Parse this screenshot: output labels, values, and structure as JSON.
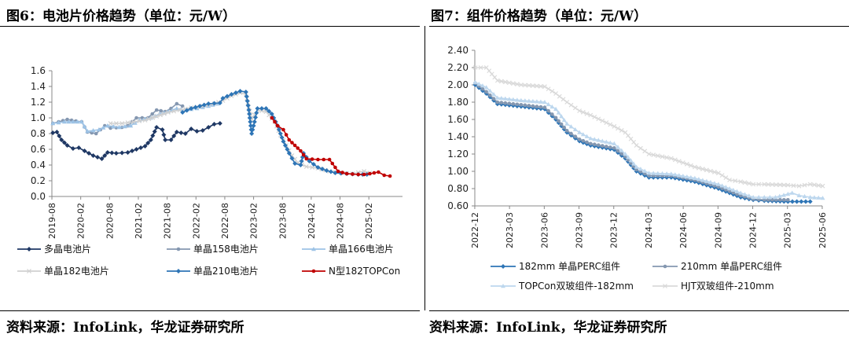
{
  "left": {
    "title": "图6：电池片价格趋势（单位：元/W）",
    "source": "资料来源：InfoLink，华龙证券研究所"
  },
  "right": {
    "title": "图7：组件价格趋势（单位：元/W）",
    "source": "资料来源：InfoLink，华龙证券研究所"
  },
  "chart_data": [
    {
      "type": "line",
      "title": "电池片价格趋势",
      "ylabel": "元/W",
      "ylim": [
        0,
        1.6
      ],
      "yticks": [
        "0.0",
        "0.2",
        "0.4",
        "0.6",
        "0.8",
        "1.0",
        "1.2",
        "1.4",
        "1.6"
      ],
      "xlim": [
        2019.583,
        2025.667
      ],
      "xticks": [
        "2019-08",
        "2020-02",
        "2020-08",
        "2021-02",
        "2021-08",
        "2022-02",
        "2022-08",
        "2023-02",
        "2023-08",
        "2024-02",
        "2024-08",
        "2025-02"
      ],
      "series": [
        {
          "name": "多晶电池片",
          "color": "#1f3864",
          "marker": "diamond",
          "points": [
            [
              2019.6,
              0.81
            ],
            [
              2019.67,
              0.82
            ],
            [
              2019.75,
              0.72
            ],
            [
              2019.85,
              0.65
            ],
            [
              2019.95,
              0.61
            ],
            [
              2020.05,
              0.62
            ],
            [
              2020.15,
              0.58
            ],
            [
              2020.3,
              0.52
            ],
            [
              2020.45,
              0.48
            ],
            [
              2020.55,
              0.56
            ],
            [
              2020.7,
              0.55
            ],
            [
              2020.9,
              0.56
            ],
            [
              2021.05,
              0.6
            ],
            [
              2021.2,
              0.64
            ],
            [
              2021.3,
              0.72
            ],
            [
              2021.4,
              0.88
            ],
            [
              2021.5,
              0.85
            ],
            [
              2021.55,
              0.72
            ],
            [
              2021.65,
              0.72
            ],
            [
              2021.75,
              0.82
            ],
            [
              2021.9,
              0.8
            ],
            [
              2022.0,
              0.86
            ],
            [
              2022.1,
              0.83
            ],
            [
              2022.2,
              0.84
            ],
            [
              2022.3,
              0.88
            ],
            [
              2022.4,
              0.92
            ],
            [
              2022.5,
              0.93
            ]
          ]
        },
        {
          "name": "单晶158电池片",
          "color": "#8497b0",
          "marker": "circle",
          "points": [
            [
              2019.6,
              0.93
            ],
            [
              2019.7,
              0.95
            ],
            [
              2019.85,
              0.98
            ],
            [
              2020.0,
              0.96
            ],
            [
              2020.1,
              0.95
            ],
            [
              2020.2,
              0.82
            ],
            [
              2020.35,
              0.8
            ],
            [
              2020.5,
              0.9
            ],
            [
              2020.6,
              0.87
            ],
            [
              2020.8,
              0.88
            ],
            [
              2020.9,
              0.9
            ],
            [
              2021.05,
              1.0
            ],
            [
              2021.25,
              1.0
            ],
            [
              2021.4,
              1.1
            ],
            [
              2021.55,
              1.08
            ],
            [
              2021.65,
              1.12
            ],
            [
              2021.75,
              1.18
            ],
            [
              2021.85,
              1.15
            ]
          ]
        },
        {
          "name": "单晶166电池片",
          "color": "#9dc3e6",
          "marker": "triangle",
          "points": [
            [
              2019.6,
              0.93
            ],
            [
              2019.8,
              0.95
            ],
            [
              2020.1,
              0.95
            ],
            [
              2020.2,
              0.83
            ],
            [
              2020.4,
              0.85
            ],
            [
              2020.55,
              0.9
            ],
            [
              2020.75,
              0.88
            ],
            [
              2020.95,
              0.9
            ],
            [
              2021.1,
              0.97
            ],
            [
              2021.3,
              1.0
            ],
            [
              2021.45,
              1.05
            ],
            [
              2021.6,
              1.08
            ],
            [
              2021.75,
              1.12
            ],
            [
              2021.9,
              1.1
            ],
            [
              2022.1,
              1.12
            ],
            [
              2022.3,
              1.15
            ],
            [
              2022.45,
              1.18
            ]
          ]
        },
        {
          "name": "单晶182电池片",
          "color": "#d0d0d0",
          "marker": "x",
          "points": [
            [
              2020.6,
              0.93
            ],
            [
              2020.8,
              0.93
            ],
            [
              2021.0,
              0.95
            ],
            [
              2021.2,
              0.97
            ],
            [
              2021.4,
              1.02
            ],
            [
              2021.6,
              1.07
            ],
            [
              2021.8,
              1.1
            ],
            [
              2022.0,
              1.13
            ],
            [
              2022.2,
              1.15
            ],
            [
              2022.4,
              1.18
            ],
            [
              2022.55,
              1.22
            ],
            [
              2022.7,
              1.28
            ],
            [
              2022.85,
              1.32
            ],
            [
              2022.95,
              1.3
            ],
            [
              2023.05,
              0.98
            ],
            [
              2023.15,
              1.1
            ],
            [
              2023.3,
              1.08
            ],
            [
              2023.45,
              0.95
            ],
            [
              2023.55,
              0.78
            ],
            [
              2023.65,
              0.65
            ],
            [
              2023.75,
              0.52
            ],
            [
              2023.85,
              0.43
            ],
            [
              2024.0,
              0.38
            ],
            [
              2024.2,
              0.36
            ],
            [
              2024.4,
              0.32
            ],
            [
              2024.6,
              0.3
            ],
            [
              2024.8,
              0.29
            ],
            [
              2025.0,
              0.32
            ],
            [
              2025.1,
              0.3
            ]
          ]
        },
        {
          "name": "单晶210电池片",
          "color": "#2e75b6",
          "marker": "diamond",
          "points": [
            [
              2021.85,
              1.07
            ],
            [
              2022.0,
              1.12
            ],
            [
              2022.15,
              1.15
            ],
            [
              2022.3,
              1.18
            ],
            [
              2022.5,
              1.19
            ],
            [
              2022.55,
              1.25
            ],
            [
              2022.7,
              1.3
            ],
            [
              2022.85,
              1.34
            ],
            [
              2022.95,
              1.33
            ],
            [
              2023.0,
              1.1
            ],
            [
              2023.05,
              0.8
            ],
            [
              2023.1,
              0.95
            ],
            [
              2023.15,
              1.12
            ],
            [
              2023.3,
              1.12
            ],
            [
              2023.4,
              1.05
            ],
            [
              2023.5,
              0.9
            ],
            [
              2023.6,
              0.7
            ],
            [
              2023.7,
              0.55
            ],
            [
              2023.8,
              0.42
            ],
            [
              2023.9,
              0.4
            ],
            [
              2023.95,
              0.55
            ],
            [
              2024.05,
              0.45
            ],
            [
              2024.2,
              0.37
            ],
            [
              2024.35,
              0.33
            ],
            [
              2024.5,
              0.3
            ],
            [
              2024.7,
              0.29
            ],
            [
              2024.9,
              0.28
            ],
            [
              2025.05,
              0.28
            ]
          ]
        },
        {
          "name": "N型182TOPCon",
          "color": "#c00000",
          "marker": "circle",
          "points": [
            [
              2023.4,
              1.0
            ],
            [
              2023.5,
              0.9
            ],
            [
              2023.6,
              0.85
            ],
            [
              2023.7,
              0.72
            ],
            [
              2023.8,
              0.65
            ],
            [
              2023.9,
              0.58
            ],
            [
              2024.0,
              0.48
            ],
            [
              2024.2,
              0.47
            ],
            [
              2024.4,
              0.47
            ],
            [
              2024.5,
              0.37
            ],
            [
              2024.55,
              0.32
            ],
            [
              2024.7,
              0.29
            ],
            [
              2024.9,
              0.28
            ],
            [
              2025.0,
              0.28
            ],
            [
              2025.1,
              0.29
            ],
            [
              2025.25,
              0.31
            ],
            [
              2025.35,
              0.27
            ],
            [
              2025.45,
              0.26
            ]
          ]
        }
      ]
    },
    {
      "type": "line",
      "title": "组件价格趋势",
      "ylabel": "元/W",
      "ylim": [
        0.6,
        2.4
      ],
      "yticks": [
        "0.60",
        "0.80",
        "1.00",
        "1.20",
        "1.40",
        "1.60",
        "1.80",
        "2.00",
        "2.20",
        "2.40"
      ],
      "xlim": [
        2022.917,
        2025.417
      ],
      "xticks": [
        "2022-12",
        "2023-03",
        "2023-06",
        "2023-09",
        "2023-12",
        "2024-03",
        "2024-06",
        "2024-09",
        "2024-12",
        "2025-03",
        "2025-06"
      ],
      "series": [
        {
          "name": "182mm 单晶PERC组件",
          "color": "#2e75b6",
          "marker": "diamond",
          "points": [
            [
              2022.92,
              2.0
            ],
            [
              2023.0,
              1.9
            ],
            [
              2023.08,
              1.78
            ],
            [
              2023.25,
              1.75
            ],
            [
              2023.42,
              1.72
            ],
            [
              2023.5,
              1.6
            ],
            [
              2023.58,
              1.45
            ],
            [
              2023.67,
              1.35
            ],
            [
              2023.75,
              1.3
            ],
            [
              2023.92,
              1.25
            ],
            [
              2024.0,
              1.15
            ],
            [
              2024.08,
              1.0
            ],
            [
              2024.17,
              0.93
            ],
            [
              2024.33,
              0.93
            ],
            [
              2024.5,
              0.88
            ],
            [
              2024.67,
              0.8
            ],
            [
              2024.75,
              0.75
            ],
            [
              2024.83,
              0.7
            ],
            [
              2024.92,
              0.67
            ],
            [
              2025.0,
              0.66
            ],
            [
              2025.17,
              0.65
            ],
            [
              2025.33,
              0.65
            ]
          ]
        },
        {
          "name": "210mm 单晶PERC组件",
          "color": "#8497b0",
          "marker": "circle",
          "points": [
            [
              2022.92,
              2.02
            ],
            [
              2023.0,
              1.92
            ],
            [
              2023.08,
              1.8
            ],
            [
              2023.25,
              1.77
            ],
            [
              2023.42,
              1.74
            ],
            [
              2023.5,
              1.62
            ],
            [
              2023.58,
              1.47
            ],
            [
              2023.67,
              1.37
            ],
            [
              2023.75,
              1.32
            ],
            [
              2023.92,
              1.27
            ],
            [
              2024.0,
              1.17
            ],
            [
              2024.08,
              1.02
            ],
            [
              2024.17,
              0.95
            ],
            [
              2024.33,
              0.95
            ],
            [
              2024.5,
              0.9
            ],
            [
              2024.67,
              0.82
            ],
            [
              2024.75,
              0.77
            ],
            [
              2024.83,
              0.72
            ],
            [
              2024.92,
              0.68
            ],
            [
              2025.0,
              0.67
            ],
            [
              2025.17,
              0.67
            ]
          ]
        },
        {
          "name": "TOPCon双玻组件-182mm",
          "color": "#bdd7ee",
          "marker": "triangle",
          "points": [
            [
              2022.92,
              2.03
            ],
            [
              2023.0,
              1.97
            ],
            [
              2023.08,
              1.85
            ],
            [
              2023.25,
              1.82
            ],
            [
              2023.42,
              1.8
            ],
            [
              2023.5,
              1.72
            ],
            [
              2023.58,
              1.55
            ],
            [
              2023.67,
              1.45
            ],
            [
              2023.75,
              1.38
            ],
            [
              2023.92,
              1.32
            ],
            [
              2024.0,
              1.2
            ],
            [
              2024.08,
              1.05
            ],
            [
              2024.17,
              0.98
            ],
            [
              2024.33,
              0.97
            ],
            [
              2024.5,
              0.92
            ],
            [
              2024.67,
              0.85
            ],
            [
              2024.75,
              0.8
            ],
            [
              2024.83,
              0.75
            ],
            [
              2024.92,
              0.7
            ],
            [
              2025.0,
              0.7
            ],
            [
              2025.08,
              0.7
            ],
            [
              2025.2,
              0.75
            ],
            [
              2025.25,
              0.72
            ],
            [
              2025.33,
              0.7
            ],
            [
              2025.42,
              0.69
            ]
          ]
        },
        {
          "name": "HJT双玻组件-210mm",
          "color": "#d9d9d9",
          "marker": "x",
          "points": [
            [
              2022.92,
              2.2
            ],
            [
              2023.0,
              2.2
            ],
            [
              2023.08,
              2.05
            ],
            [
              2023.25,
              2.0
            ],
            [
              2023.42,
              1.98
            ],
            [
              2023.5,
              1.9
            ],
            [
              2023.58,
              1.8
            ],
            [
              2023.67,
              1.7
            ],
            [
              2023.75,
              1.65
            ],
            [
              2023.92,
              1.52
            ],
            [
              2024.0,
              1.45
            ],
            [
              2024.08,
              1.3
            ],
            [
              2024.17,
              1.2
            ],
            [
              2024.33,
              1.15
            ],
            [
              2024.5,
              1.05
            ],
            [
              2024.67,
              0.98
            ],
            [
              2024.75,
              0.9
            ],
            [
              2024.83,
              0.88
            ],
            [
              2024.92,
              0.85
            ],
            [
              2025.0,
              0.85
            ],
            [
              2025.17,
              0.84
            ],
            [
              2025.25,
              0.83
            ],
            [
              2025.33,
              0.85
            ],
            [
              2025.42,
              0.83
            ]
          ]
        }
      ]
    }
  ]
}
